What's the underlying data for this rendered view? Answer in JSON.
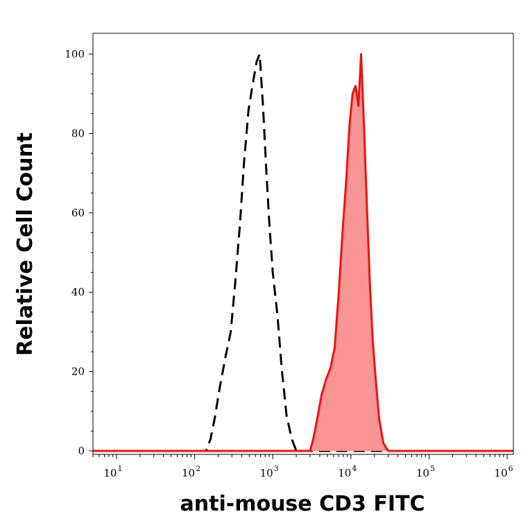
{
  "chart_data": {
    "type": "area",
    "xlabel": "anti-mouse CD3 FITC",
    "ylabel": "Relative Cell Count",
    "xscale": "log",
    "xlim": [
      5,
      1200000
    ],
    "ylim": [
      0,
      100
    ],
    "yticks": [
      "0",
      "20",
      "40",
      "60",
      "80",
      "100"
    ],
    "xticks": [
      {
        "base": "10",
        "exp": "1"
      },
      {
        "base": "10",
        "exp": "2"
      },
      {
        "base": "10",
        "exp": "3"
      },
      {
        "base": "10",
        "exp": "4"
      },
      {
        "base": "10",
        "exp": "5"
      },
      {
        "base": "10",
        "exp": "6"
      }
    ],
    "grid": false,
    "series": [
      {
        "style": "dashed",
        "color": "#000000",
        "x": [
          5,
          140,
          160,
          180,
          210,
          250,
          290,
          330,
          380,
          430,
          490,
          550,
          620,
          680,
          750,
          820,
          900,
          1000,
          1150,
          1300,
          1500,
          1750,
          2000,
          2300,
          2700,
          3200,
          1200000
        ],
        "y": [
          0,
          0,
          3,
          8,
          16,
          24,
          30,
          42,
          57,
          73,
          86,
          92,
          98,
          100,
          87,
          72,
          58,
          45,
          34,
          21,
          9,
          3,
          0,
          0,
          0,
          0,
          0
        ]
      },
      {
        "style": "filled",
        "color": "#ee1111",
        "fill": "#f99595",
        "x": [
          5,
          3000,
          3300,
          3700,
          4200,
          4800,
          5500,
          6200,
          7000,
          7800,
          8700,
          9600,
          10500,
          11500,
          12500,
          13500,
          14700,
          16000,
          17500,
          19000,
          21000,
          23000,
          26000,
          30000,
          1200000
        ],
        "y": [
          0,
          0,
          3,
          8,
          14,
          18,
          21,
          26,
          40,
          55,
          68,
          82,
          90,
          92,
          87,
          100,
          82,
          62,
          42,
          28,
          17,
          8,
          2,
          0,
          0
        ]
      }
    ]
  }
}
